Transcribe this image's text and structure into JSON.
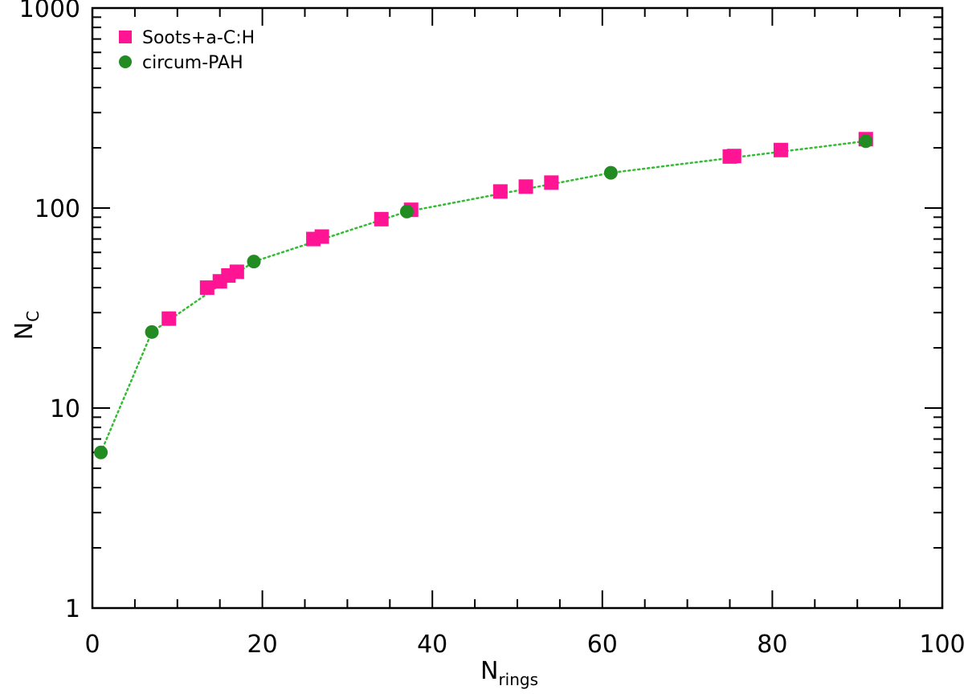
{
  "chart_data": {
    "type": "scatter",
    "title": "",
    "xlabel": {
      "main": "N",
      "sub": "rings"
    },
    "ylabel": {
      "main": "N",
      "sub": "C"
    },
    "xlim": [
      0,
      100
    ],
    "ylim": [
      1,
      1000
    ],
    "y_scale": "log",
    "grid": false,
    "legend_placement": "top-left",
    "x_ticks": [
      0,
      20,
      40,
      60,
      80,
      100
    ],
    "x_tick_labels": [
      "0",
      "20",
      "40",
      "60",
      "80",
      "100"
    ],
    "y_ticks": [
      1,
      10,
      100,
      1000
    ],
    "y_tick_labels": [
      "1",
      "10",
      "100",
      "1000"
    ],
    "series": [
      {
        "name": "Soots+a-C:H",
        "marker": "square",
        "color": "#ff1493",
        "x": [
          9,
          13.5,
          15,
          16,
          17,
          26,
          27,
          34,
          37.5,
          48,
          51,
          54,
          75,
          75.5,
          81,
          91
        ],
        "y": [
          28,
          40,
          43,
          46,
          48,
          70,
          72,
          88,
          98,
          121,
          128,
          134,
          181,
          182,
          195,
          221
        ]
      },
      {
        "name": "circum-PAH",
        "marker": "circle",
        "color": "#228b22",
        "x": [
          1,
          7,
          19,
          37,
          61,
          91
        ],
        "y": [
          6,
          24,
          54,
          96,
          150,
          216
        ]
      }
    ],
    "fit_line": {
      "color": "#33bb33",
      "style": "dotted"
    }
  }
}
